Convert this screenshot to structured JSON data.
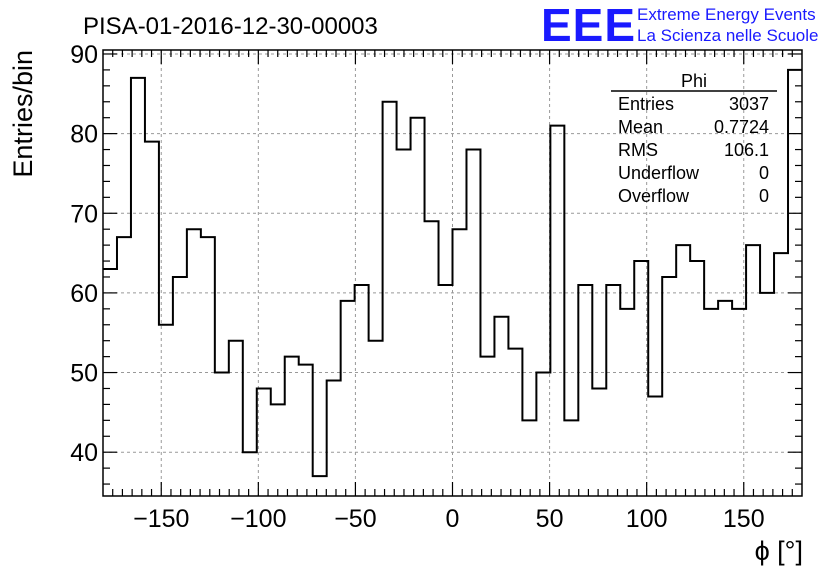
{
  "chart_data": {
    "type": "bar",
    "title": "PISA-01-2016-12-30-00003",
    "xlabel": "ϕ [°]",
    "ylabel": "Entries/bin",
    "xlim": [
      -180,
      180
    ],
    "ylim": [
      34.5,
      90.5
    ],
    "bin_width": 7.2,
    "x_ticks": [
      -150,
      -100,
      -50,
      0,
      50,
      100,
      150
    ],
    "x_tick_labels": [
      "−150",
      "−100",
      "−50",
      "0",
      "50",
      "100",
      "150"
    ],
    "y_ticks": [
      40,
      50,
      60,
      70,
      80,
      90
    ],
    "y_tick_labels": [
      "40",
      "50",
      "60",
      "70",
      "80",
      "90"
    ],
    "grid": true,
    "series": [
      {
        "values": [
          63,
          67,
          87,
          79,
          56,
          62,
          68,
          67,
          50,
          54,
          40,
          48,
          46,
          52,
          51,
          37,
          49,
          59,
          61,
          54,
          84,
          78,
          82,
          69,
          61,
          68,
          78,
          52,
          57,
          53,
          44,
          50,
          81,
          44,
          61,
          48,
          61,
          58,
          64,
          47,
          62,
          66,
          64,
          58,
          59,
          58,
          66,
          60,
          65,
          88
        ]
      }
    ],
    "stats_box": {
      "title": "Phi",
      "rows": [
        {
          "label": "Entries",
          "value": "3037"
        },
        {
          "label": "Mean",
          "value": "0.7724"
        },
        {
          "label": "RMS",
          "value": "106.1"
        },
        {
          "label": "Underflow",
          "value": "0"
        },
        {
          "label": "Overflow",
          "value": "0"
        }
      ]
    }
  },
  "logo": {
    "mark": "EEE",
    "line1": "Extreme Energy Events",
    "line2": "La Scienza nelle Scuole",
    "color": "#1a1aff"
  }
}
